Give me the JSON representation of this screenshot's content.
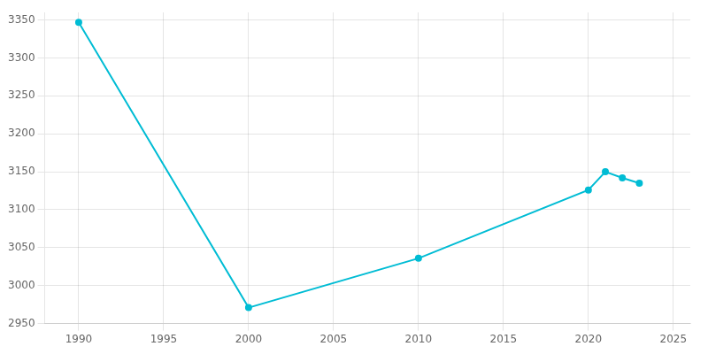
{
  "chart_data": {
    "type": "line",
    "x": [
      1990,
      2000,
      2010,
      2020,
      2021,
      2022,
      2023
    ],
    "values": [
      3347,
      2971,
      3036,
      3126,
      3150,
      3142,
      3135
    ],
    "color": "#00bcd4",
    "marker": "circle",
    "xlim": [
      1988,
      2026
    ],
    "ylim": [
      2950,
      3360
    ],
    "xticks": [
      1990,
      1995,
      2000,
      2005,
      2010,
      2015,
      2020,
      2025
    ],
    "yticks": [
      2950,
      3000,
      3050,
      3100,
      3150,
      3200,
      3250,
      3300,
      3350
    ],
    "grid": true
  }
}
